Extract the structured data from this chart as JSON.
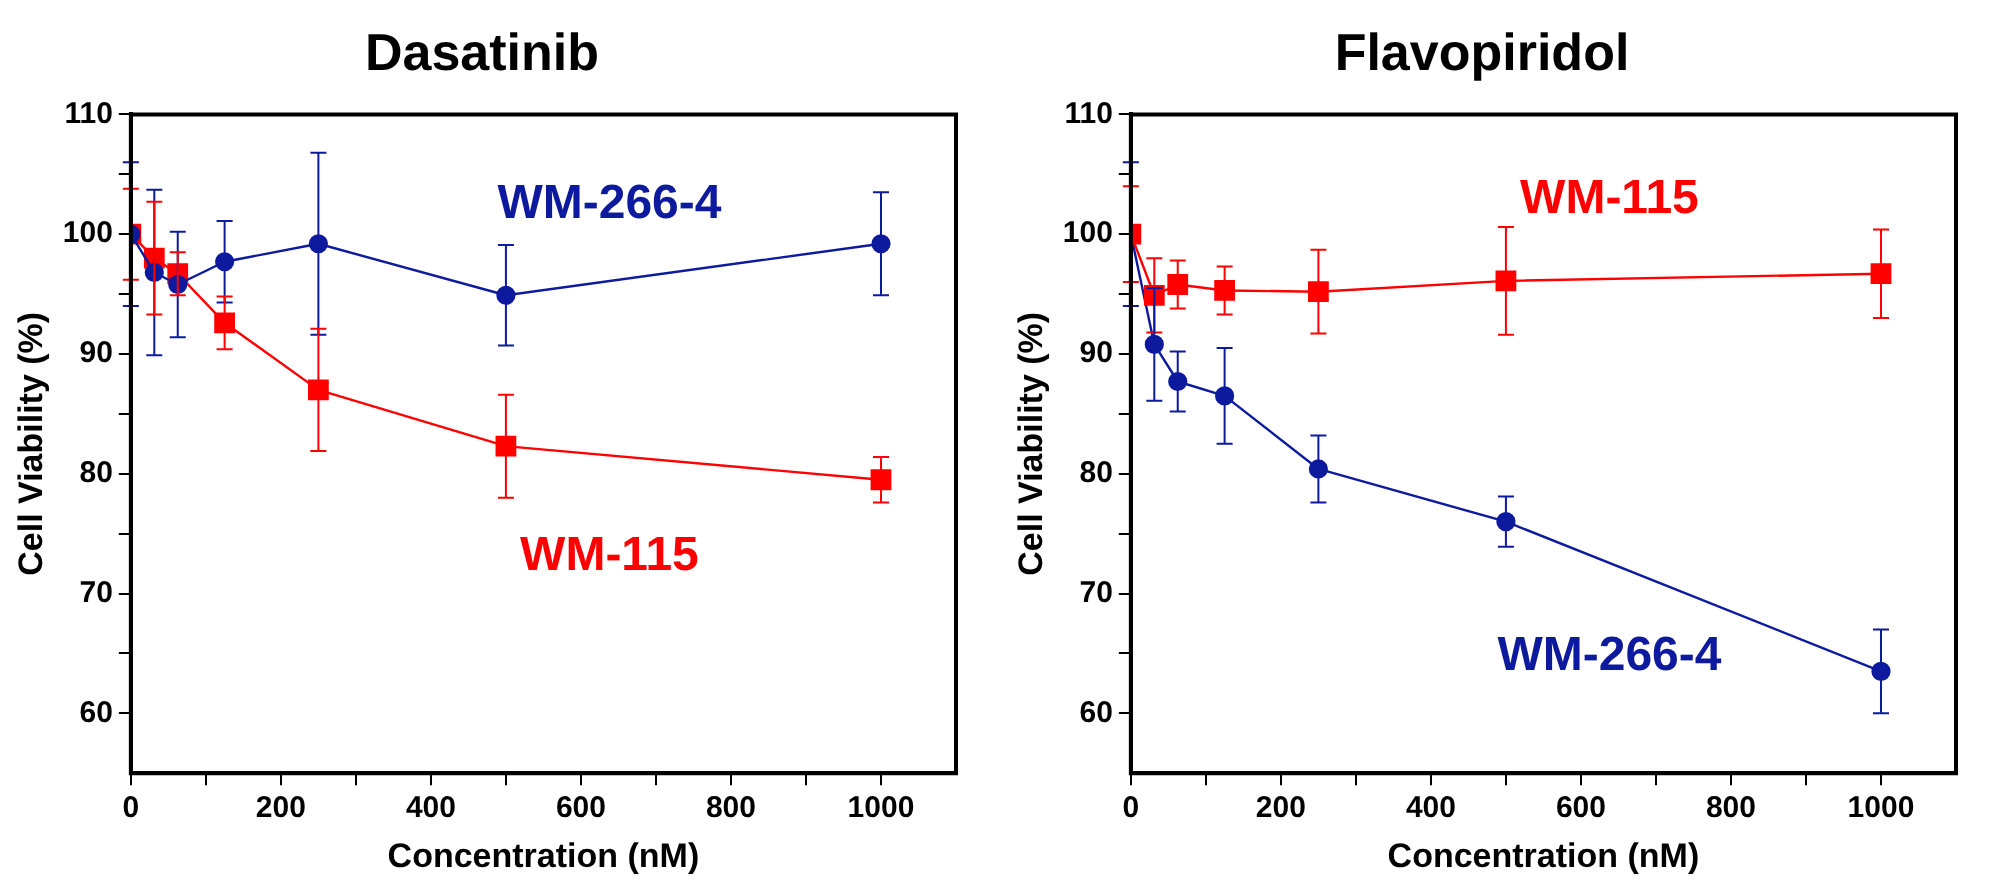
{
  "chart_data": [
    {
      "type": "line",
      "title": "Dasatinib",
      "xlabel": "Concentration (nM)",
      "ylabel": "Cell Viability (%)",
      "x": [
        0,
        31.25,
        62.5,
        125,
        250,
        500,
        1000
      ],
      "xlim": [
        0,
        1100
      ],
      "ylim": [
        55,
        110
      ],
      "xticks": [
        0,
        {
          "value": 100,
          "label": null
        },
        200,
        {
          "value": 300,
          "label": null
        },
        400,
        {
          "value": 500,
          "label": null
        },
        600,
        {
          "value": 700,
          "label": null
        },
        800,
        {
          "value": 900,
          "label": null
        },
        1000
      ],
      "yticks": [
        60,
        {
          "value": 65,
          "label": null
        },
        70,
        {
          "value": 75,
          "label": null
        },
        80,
        {
          "value": 85,
          "label": null
        },
        90,
        {
          "value": 95,
          "label": null
        },
        100,
        {
          "value": 105,
          "label": null
        },
        110
      ],
      "grid": false,
      "legend": false,
      "series": [
        {
          "name": "WM-266-4",
          "color": "#0d1a9e",
          "marker": "circle",
          "values": [
            100,
            96.8,
            95.8,
            97.7,
            99.2,
            94.9,
            99.2
          ],
          "errors": [
            6,
            6.9,
            4.4,
            3.4,
            7.6,
            4.2,
            4.3
          ]
        },
        {
          "name": "WM-115",
          "color": "#ff0000",
          "marker": "square",
          "values": [
            100,
            98,
            96.7,
            92.6,
            87,
            82.3,
            79.5
          ],
          "errors": [
            3.8,
            4.7,
            1.8,
            2.2,
            5.1,
            4.3,
            1.9
          ]
        }
      ]
    },
    {
      "type": "line",
      "title": "Flavopiridol",
      "xlabel": "Concentration (nM)",
      "ylabel": "Cell Viability (%)",
      "x": [
        0,
        31.25,
        62.5,
        125,
        250,
        500,
        1000
      ],
      "xlim": [
        0,
        1100
      ],
      "ylim": [
        55,
        110
      ],
      "xticks": [
        0,
        {
          "value": 100,
          "label": null
        },
        200,
        {
          "value": 300,
          "label": null
        },
        400,
        {
          "value": 500,
          "label": null
        },
        600,
        {
          "value": 700,
          "label": null
        },
        800,
        {
          "value": 900,
          "label": null
        },
        1000
      ],
      "yticks": [
        60,
        {
          "value": 65,
          "label": null
        },
        70,
        {
          "value": 75,
          "label": null
        },
        80,
        {
          "value": 85,
          "label": null
        },
        90,
        {
          "value": 95,
          "label": null
        },
        100,
        {
          "value": 105,
          "label": null
        },
        110
      ],
      "grid": false,
      "legend": false,
      "series": [
        {
          "name": "WM-115",
          "color": "#ff0000",
          "marker": "square",
          "values": [
            100,
            94.9,
            95.8,
            95.3,
            95.2,
            96.1,
            96.7
          ],
          "errors": [
            4,
            3.1,
            2,
            2,
            3.5,
            4.5,
            3.7
          ]
        },
        {
          "name": "WM-266-4",
          "color": "#0d1a9e",
          "marker": "circle",
          "values": [
            100,
            90.8,
            87.7,
            86.5,
            80.4,
            76,
            63.5
          ],
          "errors": [
            6,
            4.7,
            2.5,
            4,
            2.8,
            2.1,
            3.5
          ]
        }
      ]
    }
  ]
}
